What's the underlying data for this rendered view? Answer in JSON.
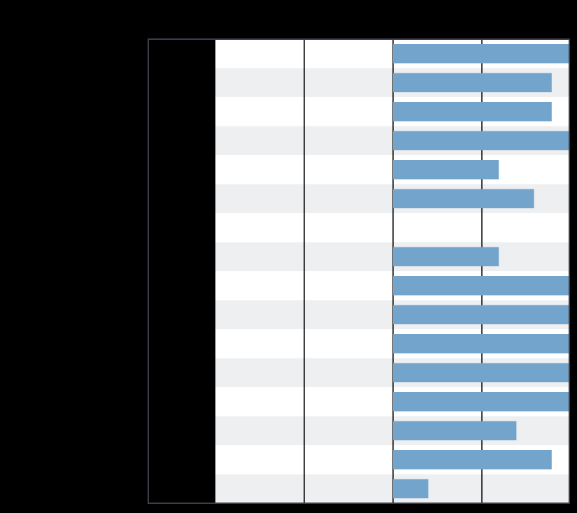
{
  "chart_data": {
    "type": "table",
    "title": "",
    "columns": [
      "",
      "",
      "",
      ""
    ],
    "rows": [
      {
        "label": "",
        "col1": "",
        "col2": "",
        "value": 1.0
      },
      {
        "label": "",
        "col1": "",
        "col2": "",
        "value": 0.9
      },
      {
        "label": "",
        "col1": "",
        "col2": "",
        "value": 0.9
      },
      {
        "label": "",
        "col1": "",
        "col2": "",
        "value": 1.0
      },
      {
        "label": "",
        "col1": "",
        "col2": "",
        "value": 0.6
      },
      {
        "label": "",
        "col1": "",
        "col2": "",
        "value": 0.8
      },
      {
        "label": "",
        "col1": "",
        "col2": "",
        "value": 0.0
      },
      {
        "label": "",
        "col1": "",
        "col2": "",
        "value": 0.6
      },
      {
        "label": "",
        "col1": "",
        "col2": "",
        "value": 1.0
      },
      {
        "label": "",
        "col1": "",
        "col2": "",
        "value": 1.0
      },
      {
        "label": "",
        "col1": "",
        "col2": "",
        "value": 1.0
      },
      {
        "label": "",
        "col1": "",
        "col2": "",
        "value": 1.0
      },
      {
        "label": "",
        "col1": "",
        "col2": "",
        "value": 1.0
      },
      {
        "label": "",
        "col1": "",
        "col2": "",
        "value": 0.7
      },
      {
        "label": "",
        "col1": "",
        "col2": "",
        "value": 0.9
      },
      {
        "label": "",
        "col1": "",
        "col2": "",
        "value": 0.2
      }
    ],
    "bar_scale": [
      0,
      1
    ],
    "grid": true,
    "colors": {
      "background": "#000000",
      "row_light": "#ffffff",
      "row_shaded": "#eeeff1",
      "bar": "#73a5cc",
      "frame": "#3a3f4b",
      "grid_line": "#000000"
    }
  }
}
